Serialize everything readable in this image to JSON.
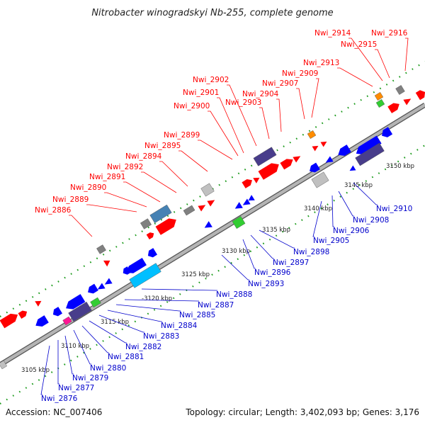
{
  "title": "Nitrobacter winogradskyi Nb-255, complete genome",
  "accession": "Accession: NC_007406",
  "summary": "Topology: circular; Length: 3,402,093 bp; Genes: 3,176",
  "colors": {
    "forward_label": "#ff0000",
    "reverse_label": "#0000cc",
    "backbone": "#a0a0a0",
    "tick": "#1a7a1a"
  },
  "kbp_ticks": [
    {
      "label": "3105 kbp",
      "kbp": 3105
    },
    {
      "label": "3110 kbp",
      "kbp": 3110
    },
    {
      "label": "3115 kbp",
      "kbp": 3115
    },
    {
      "label": "3120 kbp",
      "kbp": 3120
    },
    {
      "label": "3125 kbp",
      "kbp": 3125
    },
    {
      "label": "3130 kbp",
      "kbp": 3130
    },
    {
      "label": "3135 kbp",
      "kbp": 3135
    },
    {
      "label": "3140 kbp",
      "kbp": 3140
    },
    {
      "label": "3145 kbp",
      "kbp": 3145
    },
    {
      "label": "3150 kbp",
      "kbp": 3150
    }
  ],
  "forward_genes": [
    {
      "label": "Nwi_2886",
      "color": "#808080",
      "icon": "gray-block"
    },
    {
      "label": "Nwi_2889",
      "color": "#808080",
      "icon": "gray-block"
    },
    {
      "label": "Nwi_2890",
      "color": "#4682b4",
      "icon": "steelblue-block"
    },
    {
      "label": "Nwi_2891",
      "color": "#ff0000",
      "icon": "red-arrow"
    },
    {
      "label": "Nwi_2892",
      "color": "#808080",
      "icon": "gray-block"
    },
    {
      "label": "Nwi_2894",
      "color": "#ff0000",
      "icon": "red-arrow"
    },
    {
      "label": "Nwi_2895",
      "color": "#ff0000",
      "icon": "red-arrow"
    },
    {
      "label": "Nwi_2899",
      "color": "#c0c0c0",
      "icon": "silver-block"
    },
    {
      "label": "Nwi_2900",
      "color": "#ff0000",
      "icon": "red-arrow"
    },
    {
      "label": "Nwi_2901",
      "color": "#483d8b",
      "icon": "slate-block"
    },
    {
      "label": "Nwi_2902",
      "color": "#ff0000",
      "icon": "red-arrow"
    },
    {
      "label": "Nwi_2903",
      "color": "#ff0000",
      "icon": "red-arrow"
    },
    {
      "label": "Nwi_2904",
      "color": "#ff0000",
      "icon": "red-arrow"
    },
    {
      "label": "Nwi_2907",
      "color": "#ff0000",
      "icon": "red-arrow"
    },
    {
      "label": "Nwi_2909",
      "color": "#ff8c00",
      "icon": "orange-block"
    },
    {
      "label": "Nwi_2913",
      "color": "#32cd32",
      "icon": "green-block"
    },
    {
      "label": "Nwi_2914",
      "color": "#ff8c00",
      "icon": "orange-block"
    },
    {
      "label": "Nwi_2915",
      "color": "#ff0000",
      "icon": "red-arrow"
    },
    {
      "label": "Nwi_2916",
      "color": "#808080",
      "icon": "gray-block"
    }
  ],
  "reverse_genes": [
    {
      "label": "Nwi_2876",
      "color": "#ff1493",
      "icon": "pink-block"
    },
    {
      "label": "Nwi_2877",
      "color": "#483d8b",
      "icon": "slate-block"
    },
    {
      "label": "Nwi_2879",
      "color": "#32cd32",
      "icon": "green-block"
    },
    {
      "label": "Nwi_2880",
      "color": "#0000ff",
      "icon": "blue-arrow"
    },
    {
      "label": "Nwi_2881",
      "color": "#0000ff",
      "icon": "blue-arrow"
    },
    {
      "label": "Nwi_2882",
      "color": "#0000ff",
      "icon": "blue-arrow"
    },
    {
      "label": "Nwi_2883",
      "color": "#0000ff",
      "icon": "blue-arrow"
    },
    {
      "label": "Nwi_2884",
      "color": "#0000ff",
      "icon": "blue-arrow"
    },
    {
      "label": "Nwi_2885",
      "color": "#0000ff",
      "icon": "blue-arrow"
    },
    {
      "label": "Nwi_2887",
      "color": "#00bfff",
      "icon": "cyan-block"
    },
    {
      "label": "Nwi_2888",
      "color": "#0000ff",
      "icon": "blue-arrow"
    },
    {
      "label": "Nwi_2893",
      "color": "#0000ff",
      "icon": "blue-arrow"
    },
    {
      "label": "Nwi_2896",
      "color": "#32cd32",
      "icon": "green-block"
    },
    {
      "label": "Nwi_2897",
      "color": "#0000ff",
      "icon": "blue-arrow"
    },
    {
      "label": "Nwi_2898",
      "color": "#0000ff",
      "icon": "blue-arrow"
    },
    {
      "label": "Nwi_2905",
      "color": "#c0c0c0",
      "icon": "silver-block"
    },
    {
      "label": "Nwi_2906",
      "color": "#c0c0c0",
      "icon": "silver-block"
    },
    {
      "label": "Nwi_2908",
      "color": "#0000ff",
      "icon": "blue-arrow"
    },
    {
      "label": "Nwi_2910",
      "color": "#483d8b",
      "icon": "slate-block"
    }
  ]
}
